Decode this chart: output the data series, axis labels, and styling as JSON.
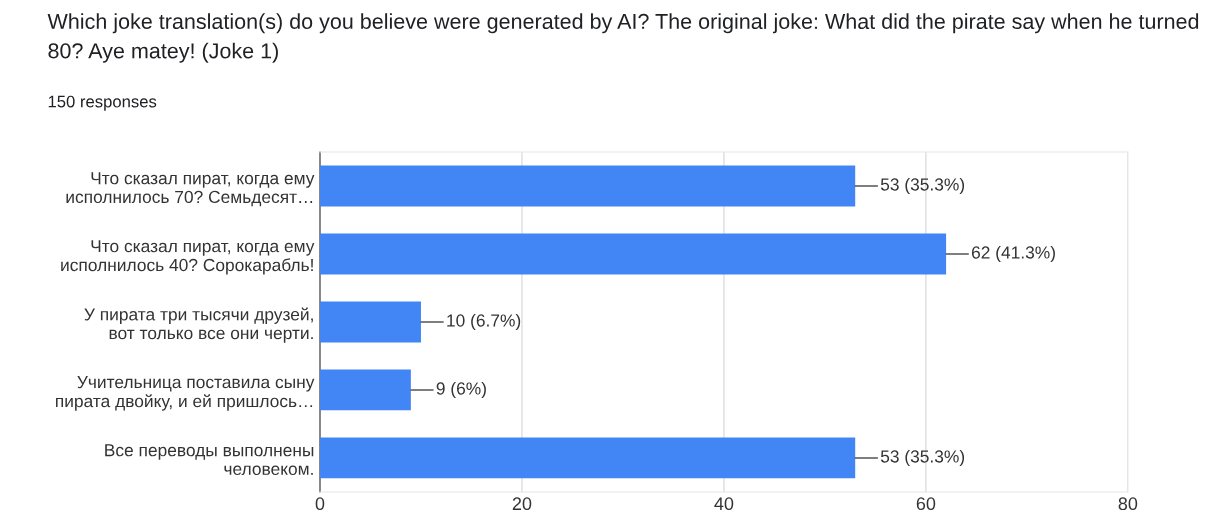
{
  "chart_data": {
    "type": "bar",
    "orientation": "horizontal",
    "title": "Which joke translation(s) do you believe were generated by AI? The original joke: What did the pirate say when he turned 80? Aye matey! (Joke 1)",
    "subtitle": "150 responses",
    "categories": [
      "Что сказал пират, когда ему\nисполнилось 70? Семьдесят…",
      "Что сказал пират, когда ему\nисполнилось 40? Сорокарабль!",
      "У пирата три тысячи друзей,\nвот только все они черти.",
      "Учительница поставила сыну\nпирата двойку, и ей пришлось…",
      "Все переводы выполнены\nчеловеком."
    ],
    "values": [
      53,
      62,
      10,
      9,
      53
    ],
    "value_labels": [
      "53 (35.3%)",
      "62 (41.3%)",
      "10 (6.7%)",
      "9 (6%)",
      "53 (35.3%)"
    ],
    "color": "#4285f4",
    "xlim": [
      0,
      80
    ],
    "xticks": [
      0,
      20,
      40,
      60,
      80
    ],
    "grid": "x",
    "legend": false
  }
}
